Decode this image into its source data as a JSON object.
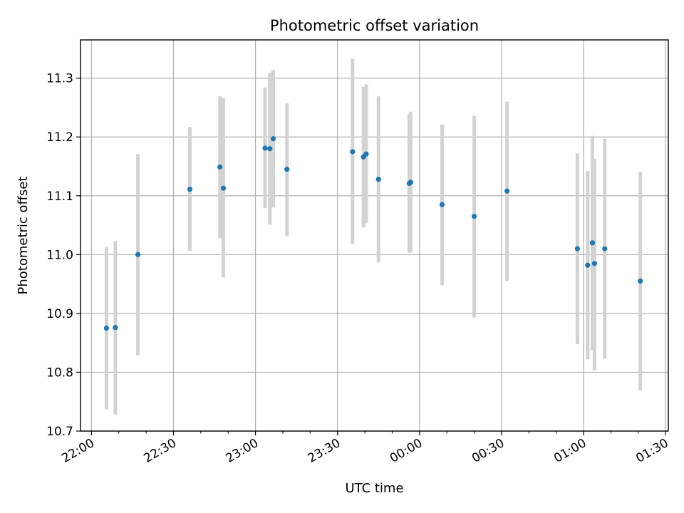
{
  "chart_data": {
    "type": "scatter",
    "title": "Photometric offset variation",
    "xlabel": "UTC time",
    "ylabel": "Photometric offset",
    "grid": true,
    "x_range": [
      "21:56",
      "01:31"
    ],
    "ylim": [
      10.7,
      11.365
    ],
    "x_ticks": [
      "22:00",
      "22:30",
      "23:00",
      "23:30",
      "00:00",
      "00:30",
      "01:00",
      "01:30"
    ],
    "y_ticks": [
      "10.7",
      "10.8",
      "10.9",
      "11.0",
      "11.1",
      "11.2",
      "11.3"
    ],
    "point_color": "#1f77b4",
    "errorbar_color": "#d3d3d3",
    "points": [
      {
        "t": "22:05:30",
        "y": 10.875,
        "yerr_low": 10.737,
        "yerr_high": 11.013
      },
      {
        "t": "22:08:45",
        "y": 10.876,
        "yerr_low": 10.728,
        "yerr_high": 11.023
      },
      {
        "t": "22:17:00",
        "y": 11.0,
        "yerr_low": 10.829,
        "yerr_high": 11.171
      },
      {
        "t": "22:36:00",
        "y": 11.111,
        "yerr_low": 11.006,
        "yerr_high": 11.217
      },
      {
        "t": "22:47:00",
        "y": 11.149,
        "yerr_low": 11.028,
        "yerr_high": 11.269
      },
      {
        "t": "22:48:15",
        "y": 11.113,
        "yerr_low": 10.961,
        "yerr_high": 11.266
      },
      {
        "t": "23:03:30",
        "y": 11.181,
        "yerr_low": 11.079,
        "yerr_high": 11.284
      },
      {
        "t": "23:05:15",
        "y": 11.18,
        "yerr_low": 11.051,
        "yerr_high": 11.309
      },
      {
        "t": "23:06:30",
        "y": 11.197,
        "yerr_low": 11.08,
        "yerr_high": 11.314
      },
      {
        "t": "23:11:30",
        "y": 11.145,
        "yerr_low": 11.032,
        "yerr_high": 11.257
      },
      {
        "t": "23:35:30",
        "y": 11.175,
        "yerr_low": 11.018,
        "yerr_high": 11.333
      },
      {
        "t": "23:39:30",
        "y": 11.166,
        "yerr_low": 11.046,
        "yerr_high": 11.285
      },
      {
        "t": "23:40:30",
        "y": 11.171,
        "yerr_low": 11.054,
        "yerr_high": 11.289
      },
      {
        "t": "23:45:00",
        "y": 11.128,
        "yerr_low": 10.987,
        "yerr_high": 11.269
      },
      {
        "t": "23:56:15",
        "y": 11.121,
        "yerr_low": 11.003,
        "yerr_high": 11.239
      },
      {
        "t": "23:56:45",
        "y": 11.123,
        "yerr_low": 11.004,
        "yerr_high": 11.243
      },
      {
        "t": "00:08:15",
        "y": 11.085,
        "yerr_low": 10.948,
        "yerr_high": 11.221
      },
      {
        "t": "00:20:00",
        "y": 11.065,
        "yerr_low": 10.893,
        "yerr_high": 11.236
      },
      {
        "t": "00:32:00",
        "y": 11.108,
        "yerr_low": 10.955,
        "yerr_high": 11.26
      },
      {
        "t": "00:57:45",
        "y": 11.01,
        "yerr_low": 10.848,
        "yerr_high": 11.172
      },
      {
        "t": "01:01:30",
        "y": 10.982,
        "yerr_low": 10.822,
        "yerr_high": 11.142
      },
      {
        "t": "01:03:15",
        "y": 11.02,
        "yerr_low": 10.837,
        "yerr_high": 11.202
      },
      {
        "t": "01:04:00",
        "y": 10.985,
        "yerr_low": 10.803,
        "yerr_high": 11.163
      },
      {
        "t": "01:07:45",
        "y": 11.01,
        "yerr_low": 10.823,
        "yerr_high": 11.197
      },
      {
        "t": "01:20:45",
        "y": 10.955,
        "yerr_low": 10.769,
        "yerr_high": 11.141
      }
    ]
  }
}
